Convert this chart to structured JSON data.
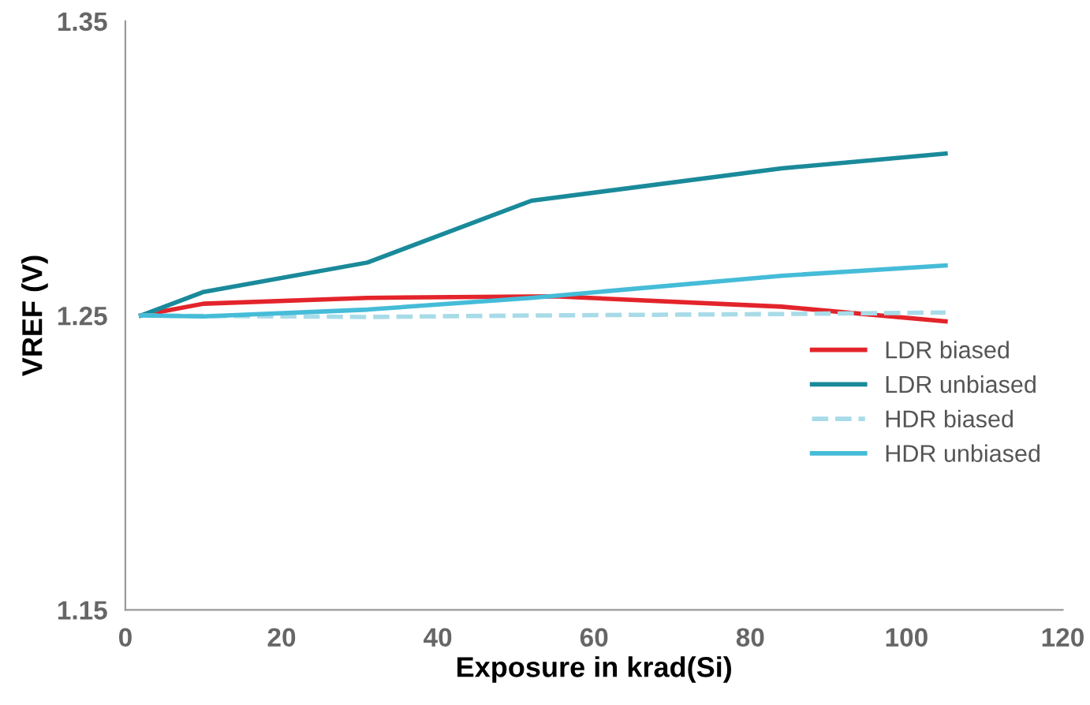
{
  "chart_data": {
    "type": "line",
    "xlabel": "Exposure in krad(Si)",
    "ylabel": "VREF (V)",
    "xlim": [
      0,
      120
    ],
    "xticks": [
      0,
      20,
      40,
      60,
      80,
      100,
      120
    ],
    "ylim": [
      1.15,
      1.35
    ],
    "yticks": [
      1.15,
      1.25,
      1.35
    ],
    "grid": false,
    "legend": "right",
    "marker": "none",
    "series": [
      {
        "name": "LDR biased",
        "color": "#e3242b",
        "x": [
          2,
          10,
          31,
          55,
          84,
          105
        ],
        "values": [
          1.25,
          1.254,
          1.256,
          1.2565,
          1.253,
          1.248
        ],
        "line_style": "solid"
      },
      {
        "name": "LDR unbiased",
        "color": "#1a8a9a",
        "x": [
          2,
          10,
          31,
          52,
          84,
          105
        ],
        "values": [
          1.25,
          1.258,
          1.268,
          1.289,
          1.3,
          1.305
        ],
        "line_style": "solid"
      },
      {
        "name": "HDR biased",
        "color": "#a8dbe8",
        "x": [
          2,
          31,
          52,
          84,
          105
        ],
        "values": [
          1.25,
          1.2495,
          1.25,
          1.2505,
          1.251
        ],
        "line_style": "dashed"
      },
      {
        "name": "HDR unbiased",
        "color": "#45bcd8",
        "x": [
          2,
          10,
          31,
          52,
          84,
          105
        ],
        "values": [
          1.25,
          1.2497,
          1.252,
          1.256,
          1.2635,
          1.267
        ],
        "line_style": "solid"
      }
    ]
  }
}
